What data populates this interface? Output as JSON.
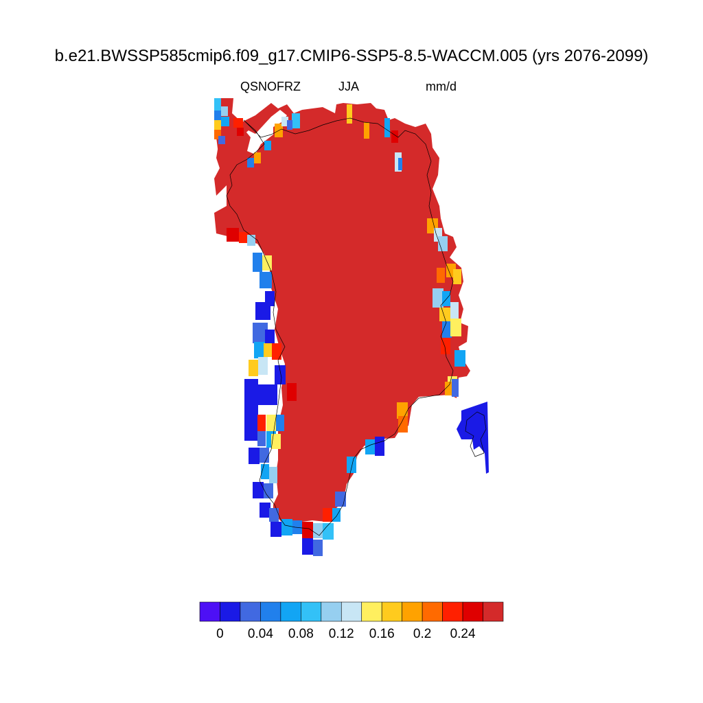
{
  "title": "b.e21.BWSSP585cmip6.f09_g17.CMIP6-SSP5-8.5-WACCM.005 (yrs 2076-2099)",
  "variable": "QSNOFRZ",
  "season": "JJA",
  "units": "mm/d",
  "colorbar": {
    "colors": [
      "#4d10f5",
      "#1a1ae6",
      "#4169e1",
      "#2180ec",
      "#12a5f4",
      "#33c1f7",
      "#96cff0",
      "#c8e6f5",
      "#ffef5f",
      "#ffcb1e",
      "#ffa200",
      "#ff6a00",
      "#ff2000",
      "#df0000",
      "#d42a2a"
    ],
    "tick_labels": [
      "0",
      "0.04",
      "0.08",
      "0.12",
      "0.16",
      "0.2",
      "0.24"
    ]
  }
}
